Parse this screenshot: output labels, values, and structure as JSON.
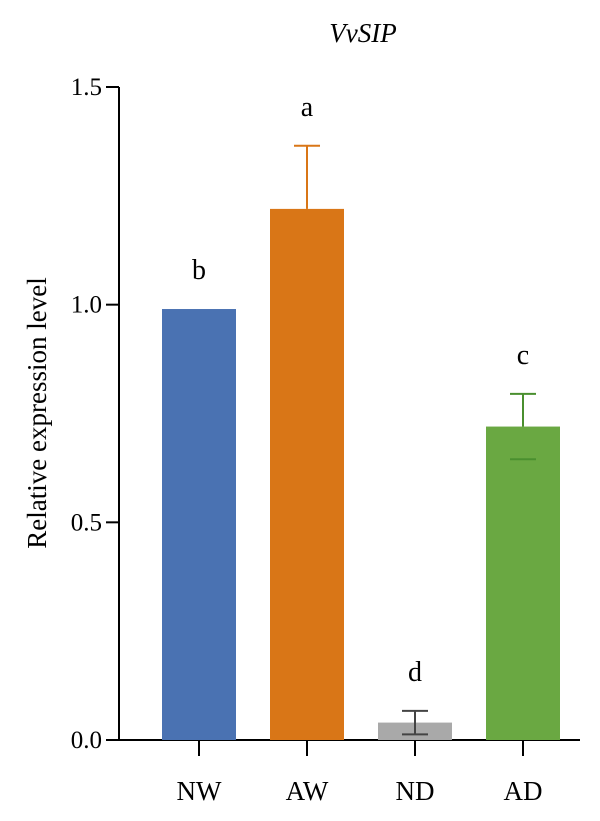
{
  "chart_data": {
    "type": "bar",
    "title": "VvSIP",
    "xlabel": "",
    "ylabel": "Relative expression level",
    "ylim": [
      0,
      1.5
    ],
    "yticks": [
      "0.0",
      "0.5",
      "1.0",
      "1.5"
    ],
    "categories": [
      "NW",
      "AW",
      "ND",
      "AD"
    ],
    "values": [
      0.99,
      1.22,
      0.04,
      0.72
    ],
    "errors": [
      0,
      0.145,
      0.027,
      0.075
    ],
    "significance": [
      "b",
      "a",
      "d",
      "c"
    ],
    "colors": [
      "#4a72b2",
      "#d97617",
      "#a9a9a9",
      "#6aa842"
    ],
    "error_colors": [
      "#4a72b2",
      "#d97617",
      "#444444",
      "#4a8f2f"
    ],
    "grid": false,
    "legend": "none"
  }
}
